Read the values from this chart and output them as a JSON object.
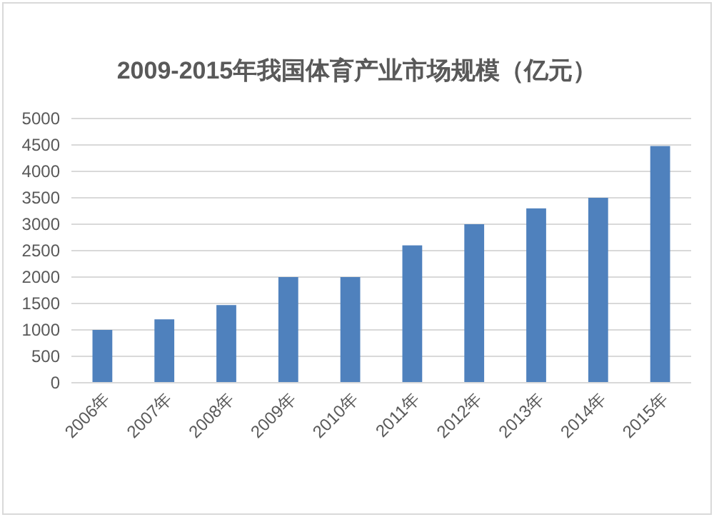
{
  "chart_data": {
    "type": "bar",
    "title": "2009-2015年我国体育产业市场规模（亿元）",
    "categories": [
      "2006年",
      "2007年",
      "2008年",
      "2009年",
      "2010年",
      "2011年",
      "2012年",
      "2013年",
      "2014年",
      "2015年"
    ],
    "values": [
      1000,
      1200,
      1470,
      2000,
      2000,
      2600,
      3000,
      3300,
      3500,
      4480
    ],
    "color": "#4f81bd",
    "ylim": [
      0,
      5000
    ],
    "yticks": [
      0,
      500,
      1000,
      1500,
      2000,
      2500,
      3000,
      3500,
      4000,
      4500,
      5000
    ],
    "grid": "y"
  }
}
